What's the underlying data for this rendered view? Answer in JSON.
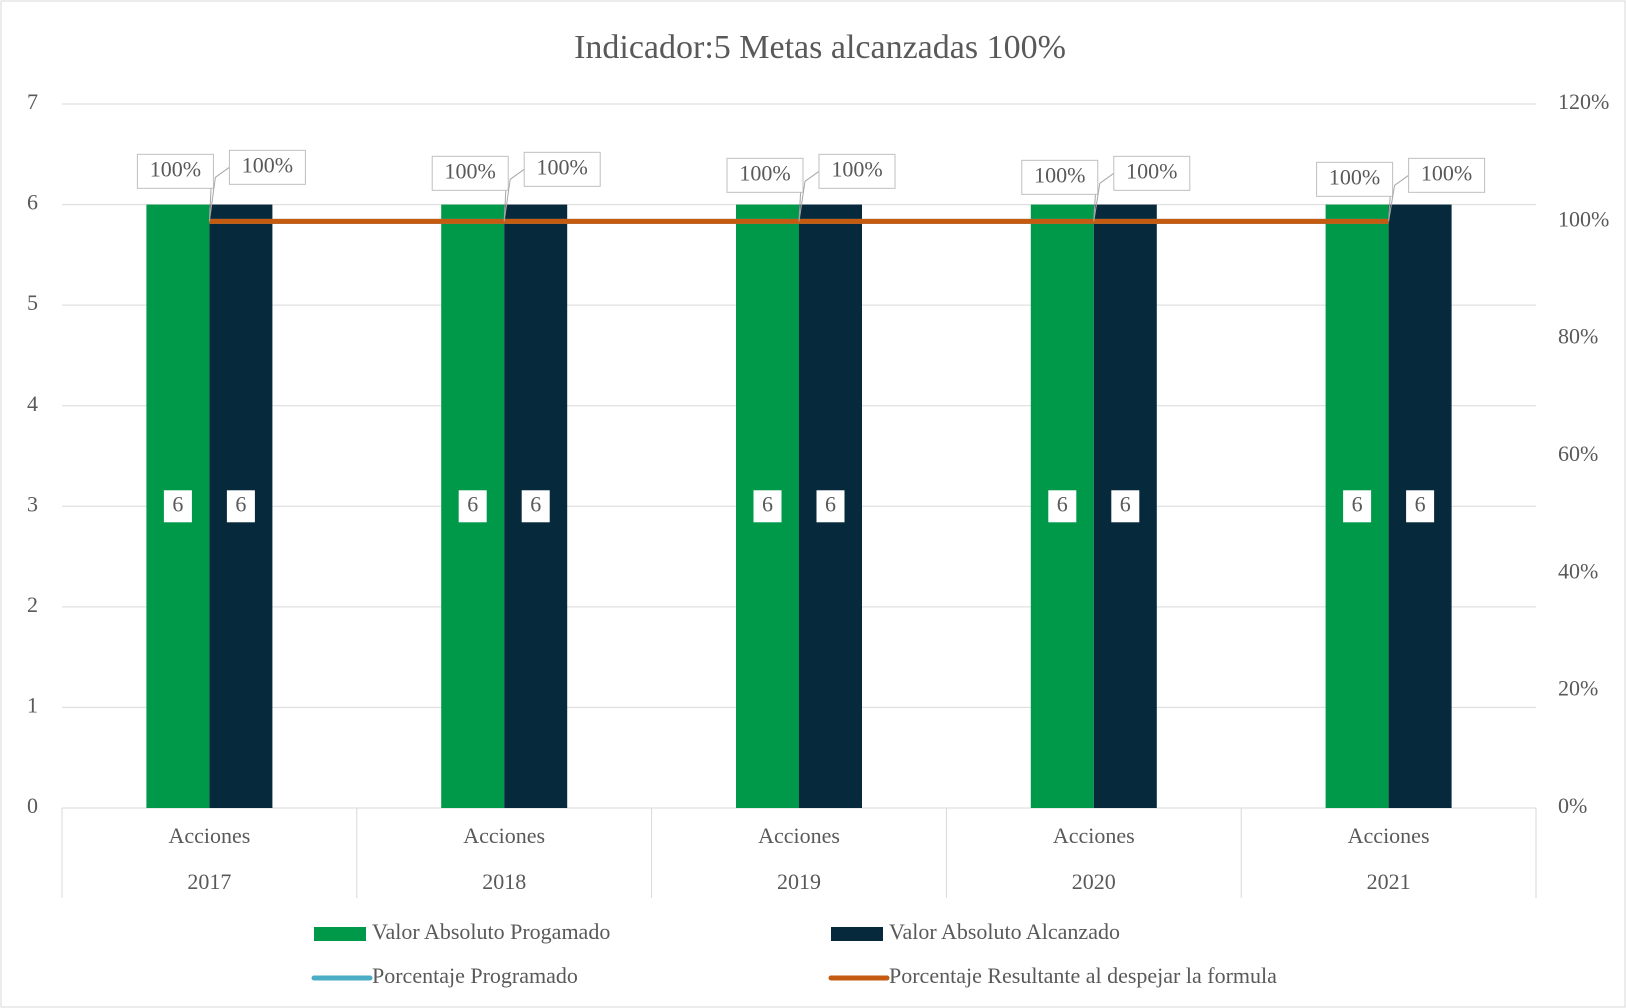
{
  "chart_data": {
    "type": "bar",
    "title": "Indicador:5  Metas alcanzadas 100%",
    "categories": [
      "Acciones",
      "Acciones",
      "Acciones",
      "Acciones",
      "Acciones"
    ],
    "category_groups": [
      "2017",
      "2018",
      "2019",
      "2020",
      "2021"
    ],
    "series": [
      {
        "name": "Valor Absoluto Progamado",
        "type": "bar",
        "color": "#00994a",
        "values": [
          6,
          6,
          6,
          6,
          6
        ]
      },
      {
        "name": "Valor Absoluto Alcanzado",
        "type": "bar",
        "color": "#062a3c",
        "values": [
          6,
          6,
          6,
          6,
          6
        ]
      },
      {
        "name": "Porcentaje Programado",
        "type": "line",
        "axis": "y2",
        "color": "#4bacc6",
        "values": [
          100,
          100,
          100,
          100,
          100
        ],
        "value_labels": [
          "100%",
          "100%",
          "100%",
          "100%",
          "100%"
        ]
      },
      {
        "name": "Porcentaje Resultante al despejar la formula",
        "type": "line",
        "axis": "y2",
        "color": "#c55a11",
        "values": [
          100,
          100,
          100,
          100,
          100
        ],
        "value_labels": [
          "100%",
          "100%",
          "100%",
          "100%",
          "100%"
        ]
      }
    ],
    "ylim": [
      0,
      7
    ],
    "yticks": [
      0,
      1,
      2,
      3,
      4,
      5,
      6,
      7
    ],
    "y2lim": [
      0,
      120
    ],
    "y2ticks": [
      {
        "value": 0,
        "label": "0%"
      },
      {
        "value": 20,
        "label": "20%"
      },
      {
        "value": 40,
        "label": "40%"
      },
      {
        "value": 60,
        "label": "60%"
      },
      {
        "value": 80,
        "label": "80%"
      },
      {
        "value": 100,
        "label": "100%"
      },
      {
        "value": 120,
        "label": "120%"
      }
    ],
    "grid": true,
    "legend": "bottom"
  }
}
